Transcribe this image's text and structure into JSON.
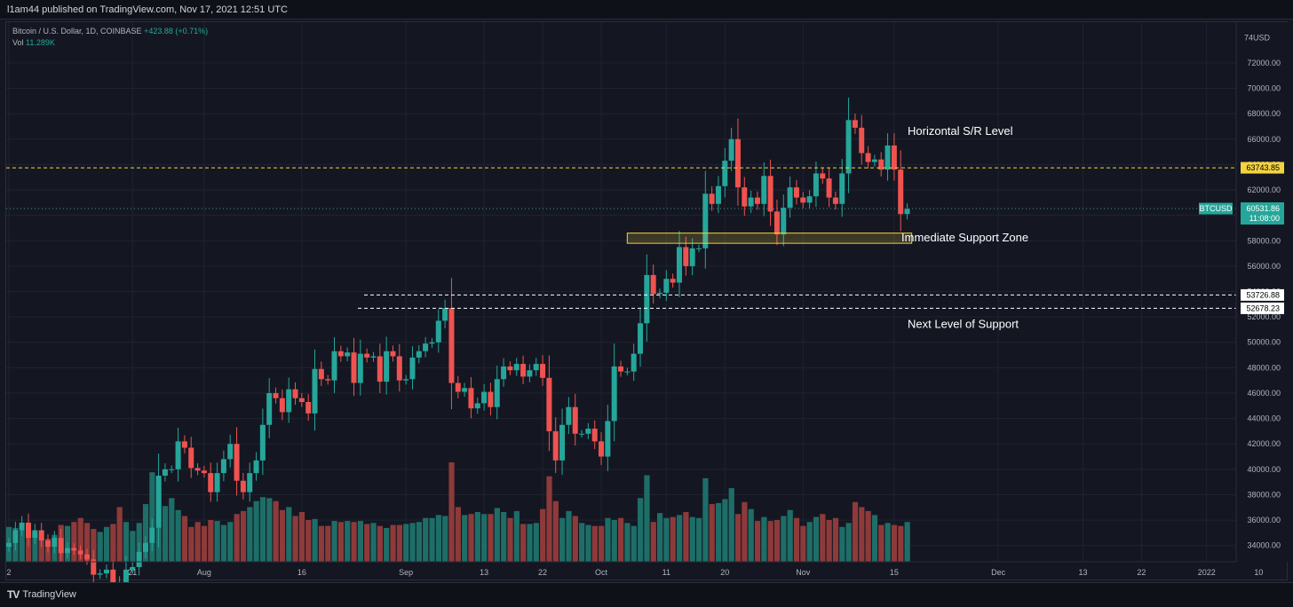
{
  "header": {
    "published": "l1am44 published on TradingView.com, Nov 17, 2021 12:51 UTC"
  },
  "legend": {
    "symbol": "Bitcoin / U.S. Dollar, 1D, COINBASE",
    "change": "+423.88 (+0.71%)",
    "vol_label": "Vol",
    "vol_value": "11.289K"
  },
  "footer": {
    "brand": "TradingView"
  },
  "colors": {
    "up": "#26a69a",
    "down": "#ef5350",
    "vol_up": "#1e6e68",
    "vol_down": "#8e3a3a",
    "sr_line": "#f3d33f",
    "support_line": "#ffffff",
    "grid": "#1f2331"
  },
  "chart_data": {
    "type": "candlestick",
    "title": "Bitcoin / U.S. Dollar, 1D, COINBASE",
    "currency": "USD",
    "ylim": [
      33000,
      75000
    ],
    "y_ticks": [
      34000,
      36000,
      38000,
      40000,
      42000,
      44000,
      46000,
      48000,
      50000,
      52000,
      54000,
      56000,
      58000,
      60000,
      62000,
      64000,
      66000,
      68000,
      70000,
      72000
    ],
    "y_top_label": "74",
    "y_unit_label": "USD",
    "x_ticks": [
      {
        "label": "2",
        "day": 0
      },
      {
        "label": "21",
        "day": 19
      },
      {
        "label": "Aug",
        "day": 30
      },
      {
        "label": "16",
        "day": 45
      },
      {
        "label": "Sep",
        "day": 61
      },
      {
        "label": "13",
        "day": 73
      },
      {
        "label": "22",
        "day": 82
      },
      {
        "label": "Oct",
        "day": 91
      },
      {
        "label": "11",
        "day": 101
      },
      {
        "label": "20",
        "day": 110
      },
      {
        "label": "Nov",
        "day": 122
      },
      {
        "label": "15",
        "day": 136
      },
      {
        "label": "Dec",
        "day": 152
      },
      {
        "label": "13",
        "day": 165
      },
      {
        "label": "22",
        "day": 174
      },
      {
        "label": "2022",
        "day": 184
      },
      {
        "label": "10",
        "day": 192
      }
    ],
    "closes": [
      34200,
      35200,
      35800,
      34600,
      35200,
      34400,
      33900,
      34600,
      33400,
      33800,
      33600,
      33300,
      32900,
      31700,
      31800,
      32100,
      30900,
      29800,
      32100,
      32300,
      33500,
      34200,
      35400,
      39500,
      40000,
      40000,
      42200,
      41700,
      40100,
      39900,
      39700,
      38200,
      39700,
      40800,
      42000,
      39100,
      38200,
      39700,
      40700,
      43500,
      46000,
      45600,
      44500,
      46300,
      45600,
      45300,
      44400,
      47900,
      47100,
      47000,
      49300,
      48900,
      49200,
      46800,
      49100,
      48800,
      48900,
      46900,
      49300,
      48900,
      47000,
      47100,
      48800,
      49300,
      49900,
      50000,
      51700,
      52700,
      46800,
      46100,
      46400,
      44800,
      45200,
      46100,
      44900,
      47100,
      48100,
      47800,
      48300,
      47300,
      47800,
      48300,
      47200,
      43000,
      40700,
      43500,
      44900,
      42800,
      42800,
      43200,
      42200,
      41000,
      43800,
      48100,
      47700,
      47700,
      49100,
      51500,
      55300,
      53800,
      53900,
      55000,
      54700,
      57500,
      56000,
      57400,
      57400,
      61700,
      60900,
      62300,
      64300,
      66000,
      62200,
      60700,
      61400,
      60900,
      63100,
      60300,
      58500,
      60600,
      62200,
      61400,
      61000,
      61500,
      63300,
      62900,
      61400,
      60900,
      63300,
      67500,
      66900,
      64900,
      64200,
      64400,
      63600,
      65500,
      63600,
      60100,
      60500
    ],
    "volumes": [
      0.35,
      0.34,
      0.32,
      0.31,
      0.28,
      0.22,
      0.23,
      0.27,
      0.37,
      0.36,
      0.4,
      0.44,
      0.39,
      0.33,
      0.3,
      0.35,
      0.38,
      0.55,
      0.4,
      0.31,
      0.39,
      0.58,
      0.9,
      0.84,
      0.56,
      0.64,
      0.52,
      0.46,
      0.35,
      0.4,
      0.36,
      0.42,
      0.41,
      0.37,
      0.4,
      0.48,
      0.51,
      0.55,
      0.61,
      0.65,
      0.64,
      0.61,
      0.52,
      0.55,
      0.46,
      0.5,
      0.42,
      0.43,
      0.36,
      0.36,
      0.41,
      0.4,
      0.41,
      0.4,
      0.41,
      0.38,
      0.39,
      0.36,
      0.34,
      0.37,
      0.37,
      0.38,
      0.39,
      0.4,
      0.44,
      0.44,
      0.47,
      0.46,
      1.0,
      0.55,
      0.47,
      0.48,
      0.5,
      0.48,
      0.48,
      0.54,
      0.5,
      0.44,
      0.51,
      0.38,
      0.38,
      0.39,
      0.53,
      0.86,
      0.61,
      0.44,
      0.51,
      0.46,
      0.39,
      0.37,
      0.36,
      0.36,
      0.44,
      0.42,
      0.44,
      0.39,
      0.36,
      0.64,
      0.87,
      0.4,
      0.49,
      0.44,
      0.45,
      0.47,
      0.5,
      0.45,
      0.44,
      0.84,
      0.58,
      0.59,
      0.63,
      0.74,
      0.48,
      0.6,
      0.53,
      0.41,
      0.45,
      0.41,
      0.42,
      0.46,
      0.52,
      0.44,
      0.36,
      0.4,
      0.45,
      0.48,
      0.42,
      0.44,
      0.35,
      0.39,
      0.6,
      0.55,
      0.51,
      0.47,
      0.37,
      0.39,
      0.37,
      0.36,
      0.4
    ]
  },
  "annotations": {
    "sr_label": "Horizontal S/R Level",
    "sr_price": 63743.85,
    "sr_price_text": "63743.85",
    "support_zone_label": "Immediate Support Zone",
    "support_zone": [
      57800,
      58600
    ],
    "next_support_label": "Next Level of Support",
    "support_1_price": 53726.88,
    "support_1_text": "53726.88",
    "support_2_price": 52678.23,
    "support_2_text": "52678.23"
  },
  "current": {
    "symbol_tag": "BTCUSD",
    "price": 60531.86,
    "price_text": "60531.86",
    "countdown": "11:08:00"
  }
}
